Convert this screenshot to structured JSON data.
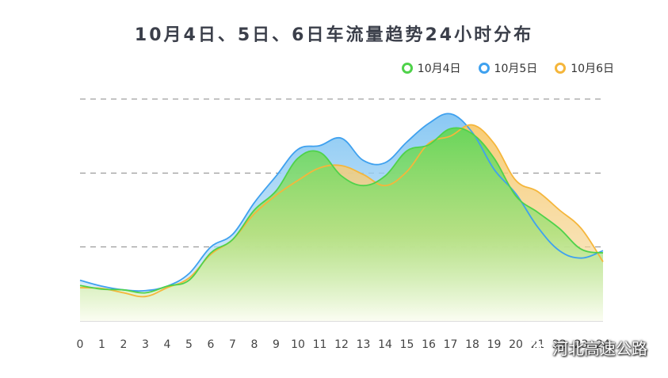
{
  "chart_data": {
    "type": "area",
    "title": "10月4日、5日、6日车流量趋势24小时分布",
    "categories": [
      "0",
      "1",
      "2",
      "3",
      "4",
      "5",
      "6",
      "7",
      "8",
      "9",
      "10",
      "11",
      "12",
      "13",
      "14",
      "15",
      "16",
      "17",
      "18",
      "19",
      "20",
      "21",
      "22",
      "23",
      "24"
    ],
    "ylim": [
      0,
      3
    ],
    "gridlines": [
      1,
      2,
      3
    ],
    "legend_position": "top-right",
    "series": [
      {
        "name": "10月6日",
        "color": "#f5b63b",
        "values": [
          0.45,
          0.44,
          0.38,
          0.33,
          0.45,
          0.58,
          0.9,
          1.1,
          1.45,
          1.7,
          1.9,
          2.07,
          2.1,
          1.98,
          1.83,
          2.02,
          2.4,
          2.5,
          2.65,
          2.4,
          1.9,
          1.75,
          1.5,
          1.25,
          0.8
        ]
      },
      {
        "name": "10月5日",
        "color": "#3fa1ef",
        "values": [
          0.55,
          0.47,
          0.42,
          0.41,
          0.47,
          0.64,
          1.0,
          1.17,
          1.6,
          1.96,
          2.32,
          2.37,
          2.47,
          2.17,
          2.14,
          2.42,
          2.67,
          2.8,
          2.55,
          2.05,
          1.72,
          1.27,
          0.95,
          0.85,
          0.95
        ]
      },
      {
        "name": "10月4日",
        "color": "#4fd24a",
        "values": [
          0.48,
          0.43,
          0.42,
          0.38,
          0.47,
          0.55,
          0.92,
          1.1,
          1.5,
          1.76,
          2.2,
          2.28,
          1.96,
          1.83,
          1.96,
          2.3,
          2.38,
          2.6,
          2.53,
          2.2,
          1.69,
          1.47,
          1.25,
          0.97,
          0.92
        ]
      }
    ]
  },
  "watermark": {
    "text": "河北高速公路",
    "icon": "wechat-icon"
  }
}
